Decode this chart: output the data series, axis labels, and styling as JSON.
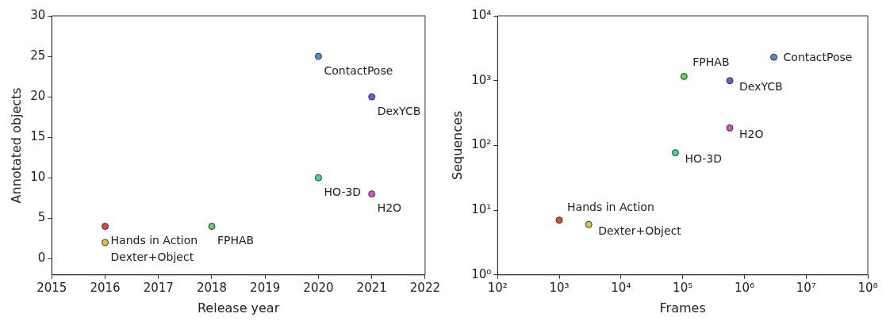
{
  "chart_data": [
    {
      "type": "scatter",
      "xlabel": "Release year",
      "ylabel": "Annotated objects",
      "xlim": [
        2015,
        2022
      ],
      "xticks": [
        2015,
        2016,
        2017,
        2018,
        2019,
        2020,
        2021,
        2022
      ],
      "ylim": [
        -2,
        30
      ],
      "yticks": [
        0,
        5,
        10,
        15,
        20,
        25,
        30
      ],
      "grid": false,
      "legend": false,
      "marker": "circle",
      "series": [
        {
          "name": "Hands in Action",
          "color": "#e24a33",
          "x": [
            2016
          ],
          "values": [
            4
          ]
        },
        {
          "name": "Dexter+Object",
          "color": "#d8c83e",
          "x": [
            2016
          ],
          "values": [
            2
          ]
        },
        {
          "name": "FPHAB",
          "color": "#5fd35b",
          "x": [
            2018
          ],
          "values": [
            4
          ]
        },
        {
          "name": "ContactPose",
          "color": "#4a90d9",
          "x": [
            2020
          ],
          "values": [
            25
          ]
        },
        {
          "name": "DexYCB",
          "color": "#7b4fe0",
          "x": [
            2021
          ],
          "values": [
            20
          ]
        },
        {
          "name": "HO-3D",
          "color": "#3fd6a0",
          "x": [
            2020
          ],
          "values": [
            10
          ]
        },
        {
          "name": "H2O",
          "color": "#d64fcf",
          "x": [
            2021
          ],
          "values": [
            8
          ]
        }
      ]
    },
    {
      "type": "scatter",
      "xlabel": "Frames",
      "ylabel": "Sequences",
      "log": "xy",
      "xlim": [
        100,
        100000000
      ],
      "xticks": [
        {
          "value": 100,
          "label": "10²"
        },
        {
          "value": 1000,
          "label": "10³"
        },
        {
          "value": 10000,
          "label": "10⁴"
        },
        {
          "value": 100000,
          "label": "10⁵"
        },
        {
          "value": 1000000,
          "label": "10⁶"
        },
        {
          "value": 10000000,
          "label": "10⁷"
        },
        {
          "value": 100000000,
          "label": "10⁸"
        }
      ],
      "ylim": [
        1,
        10000
      ],
      "yticks": [
        {
          "value": 1,
          "label": "10⁰"
        },
        {
          "value": 10,
          "label": "10¹"
        },
        {
          "value": 100,
          "label": "10²"
        },
        {
          "value": 1000,
          "label": "10³"
        },
        {
          "value": 10000,
          "label": "10⁴"
        }
      ],
      "grid": false,
      "legend": false,
      "marker": "circle",
      "series": [
        {
          "name": "Hands in Action",
          "color": "#e24a33",
          "x": [
            1000
          ],
          "values": [
            7
          ]
        },
        {
          "name": "Dexter+Object",
          "color": "#d8c83e",
          "x": [
            3000
          ],
          "values": [
            6
          ]
        },
        {
          "name": "FPHAB",
          "color": "#5fd35b",
          "x": [
            105000
          ],
          "values": [
            1160
          ]
        },
        {
          "name": "ContactPose",
          "color": "#4a90d9",
          "x": [
            3000000
          ],
          "values": [
            2300
          ]
        },
        {
          "name": "DexYCB",
          "color": "#7b4fe0",
          "x": [
            580000
          ],
          "values": [
            1000
          ]
        },
        {
          "name": "HO-3D",
          "color": "#3fd6a0",
          "x": [
            76000
          ],
          "values": [
            77
          ]
        },
        {
          "name": "H2O",
          "color": "#d64fcf",
          "x": [
            580000
          ],
          "values": [
            186
          ]
        }
      ]
    }
  ]
}
